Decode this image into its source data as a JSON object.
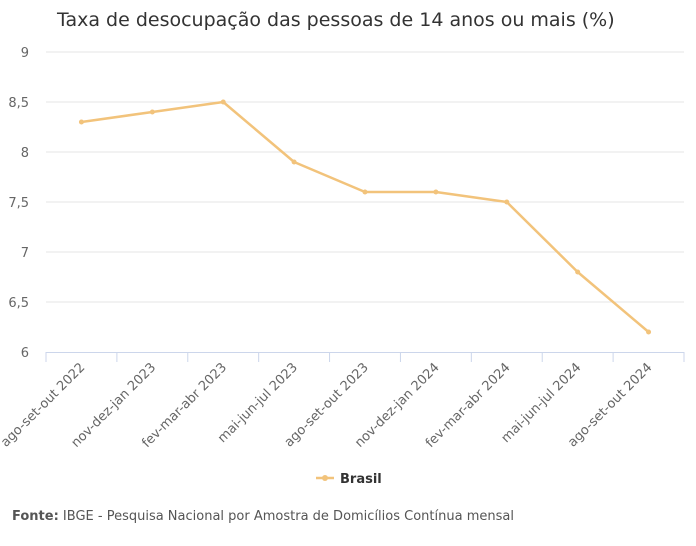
{
  "chart_data": {
    "type": "line",
    "title": "Taxa de desocupação das pessoas de 14 anos ou mais (%)",
    "xlabel": "",
    "ylabel": "",
    "categories": [
      "ago-set-out 2022",
      "nov-dez-jan 2023",
      "fev-mar-abr 2023",
      "mai-jun-jul 2023",
      "ago-set-out 2023",
      "nov-dez-jan 2024",
      "fev-mar-abr 2024",
      "mai-jun-jul 2024",
      "ago-set-out 2024"
    ],
    "series": [
      {
        "name": "Brasil",
        "values": [
          8.3,
          8.4,
          8.5,
          7.9,
          7.6,
          7.6,
          7.5,
          6.8,
          6.2
        ]
      }
    ],
    "ylim": [
      6,
      9
    ],
    "yticks": [
      "6",
      "6,5",
      "7",
      "7,5",
      "8",
      "8,5",
      "9"
    ],
    "ytick_values": [
      6,
      6.5,
      7,
      7.5,
      8,
      8.5,
      9
    ],
    "grid": true,
    "legend": "bottom-center",
    "color": "#f2c37b"
  },
  "source": {
    "label": "Fonte:",
    "text": "IBGE - Pesquisa Nacional por Amostra de Domicílios Contínua mensal"
  }
}
